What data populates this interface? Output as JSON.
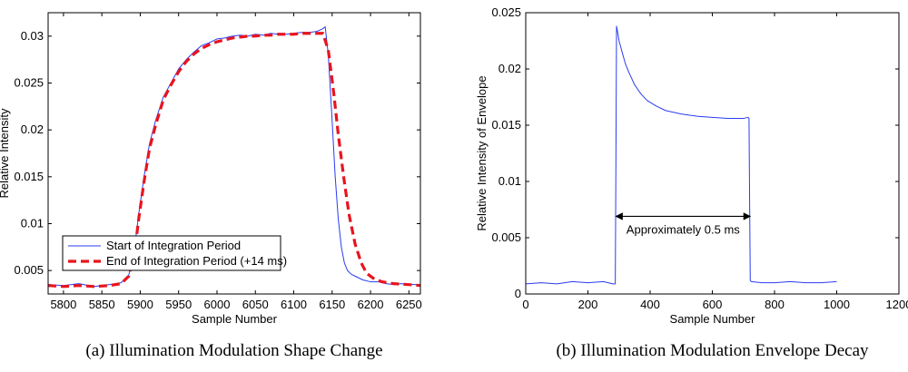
{
  "chart_data": [
    {
      "type": "line",
      "caption": "(a)  Illumination Modulation Shape Change",
      "xlabel": "Sample Number",
      "ylabel": "Relative Intensity",
      "xlim": [
        5780,
        6265
      ],
      "ylim": [
        0.0025,
        0.0325
      ],
      "xticks": [
        5800,
        5850,
        5900,
        5950,
        6000,
        6050,
        6100,
        6150,
        6200,
        6250
      ],
      "yticks": [
        0.005,
        0.01,
        0.015,
        0.02,
        0.025,
        0.03
      ],
      "ytick_labels": [
        "0.005",
        "0.01",
        "0.015",
        "0.02",
        "0.025",
        "0.03"
      ],
      "legend": {
        "placement": "lower-left",
        "entries": [
          "Start of Integration Period",
          "End of Integration Period (+14 ms)"
        ]
      },
      "series": [
        {
          "name": "Start of Integration Period",
          "color": "#2a3cf0",
          "style": "solid",
          "x": [
            5780,
            5800,
            5820,
            5840,
            5860,
            5875,
            5885,
            5892,
            5898,
            5905,
            5912,
            5920,
            5930,
            5940,
            5950,
            5960,
            5970,
            5980,
            5990,
            6000,
            6010,
            6020,
            6030,
            6040,
            6050,
            6060,
            6070,
            6080,
            6090,
            6100,
            6110,
            6120,
            6130,
            6138,
            6141,
            6145,
            6150,
            6154,
            6158,
            6162,
            6166,
            6170,
            6175,
            6180,
            6190,
            6200,
            6210,
            6220,
            6230,
            6240,
            6250,
            6265
          ],
          "y": [
            0.0035,
            0.0034,
            0.0036,
            0.0033,
            0.0035,
            0.0037,
            0.0045,
            0.007,
            0.011,
            0.015,
            0.0185,
            0.021,
            0.0235,
            0.025,
            0.0265,
            0.0275,
            0.0283,
            0.029,
            0.0293,
            0.0297,
            0.0298,
            0.03,
            0.0301,
            0.03,
            0.0302,
            0.0301,
            0.0303,
            0.0302,
            0.0302,
            0.0303,
            0.0304,
            0.0304,
            0.0305,
            0.0308,
            0.031,
            0.028,
            0.021,
            0.015,
            0.0105,
            0.0075,
            0.0058,
            0.005,
            0.0046,
            0.0044,
            0.004,
            0.0038,
            0.0038,
            0.0036,
            0.0035,
            0.0036,
            0.0035,
            0.0035
          ]
        },
        {
          "name": "End of Integration Period (+14 ms)",
          "color": "#e8141e",
          "style": "dashed",
          "x": [
            5780,
            5800,
            5820,
            5840,
            5860,
            5875,
            5885,
            5892,
            5898,
            5905,
            5912,
            5920,
            5930,
            5940,
            5950,
            5960,
            5970,
            5980,
            5990,
            6000,
            6010,
            6020,
            6030,
            6040,
            6050,
            6060,
            6070,
            6080,
            6090,
            6100,
            6110,
            6120,
            6130,
            6138,
            6145,
            6152,
            6158,
            6165,
            6172,
            6180,
            6188,
            6195,
            6205,
            6215,
            6230,
            6250,
            6265
          ],
          "y": [
            0.0034,
            0.0033,
            0.0034,
            0.0033,
            0.0034,
            0.0036,
            0.0044,
            0.0065,
            0.0105,
            0.0145,
            0.018,
            0.0205,
            0.0232,
            0.0248,
            0.0262,
            0.0273,
            0.0281,
            0.0287,
            0.0291,
            0.0294,
            0.0296,
            0.0298,
            0.0299,
            0.03,
            0.03,
            0.0301,
            0.0301,
            0.0302,
            0.0302,
            0.0302,
            0.0303,
            0.0303,
            0.0303,
            0.0303,
            0.0285,
            0.024,
            0.0195,
            0.015,
            0.011,
            0.0078,
            0.0058,
            0.0047,
            0.0041,
            0.0038,
            0.0036,
            0.0035,
            0.0034
          ]
        }
      ]
    },
    {
      "type": "line",
      "caption": "(b)  Illumination Modulation Envelope Decay",
      "xlabel": "Sample Number",
      "ylabel": "Relative Intensity of Envelope",
      "xlim": [
        0,
        1200
      ],
      "ylim": [
        0,
        0.025
      ],
      "xticks": [
        0,
        200,
        400,
        600,
        800,
        1000,
        1200
      ],
      "yticks": [
        0,
        0.005,
        0.01,
        0.015,
        0.02,
        0.025
      ],
      "ytick_labels": [
        "0",
        "0.005",
        "0.01",
        "0.015",
        "0.02",
        "0.025"
      ],
      "annotation": {
        "text": "Approximately 0.5 ms",
        "x_start": 290,
        "x_end": 722,
        "y": 0.0069
      },
      "series": [
        {
          "name": "Envelope",
          "color": "#2a3cf0",
          "style": "solid",
          "x": [
            0,
            50,
            100,
            150,
            200,
            250,
            280,
            288,
            290,
            292,
            296,
            300,
            310,
            320,
            330,
            340,
            350,
            370,
            390,
            420,
            450,
            500,
            550,
            600,
            650,
            700,
            715,
            718,
            720,
            722,
            725,
            760,
            800,
            850,
            900,
            950,
            1000
          ],
          "y": [
            0.0009,
            0.001,
            0.0009,
            0.0011,
            0.001,
            0.0011,
            0.0009,
            0.0009,
            0.012,
            0.0238,
            0.0232,
            0.0225,
            0.0215,
            0.0205,
            0.0198,
            0.0192,
            0.0186,
            0.0178,
            0.0172,
            0.0167,
            0.0163,
            0.016,
            0.0158,
            0.0157,
            0.0156,
            0.0156,
            0.0157,
            0.0156,
            0.008,
            0.0012,
            0.0011,
            0.001,
            0.001,
            0.0011,
            0.001,
            0.001,
            0.0011
          ]
        }
      ]
    }
  ]
}
